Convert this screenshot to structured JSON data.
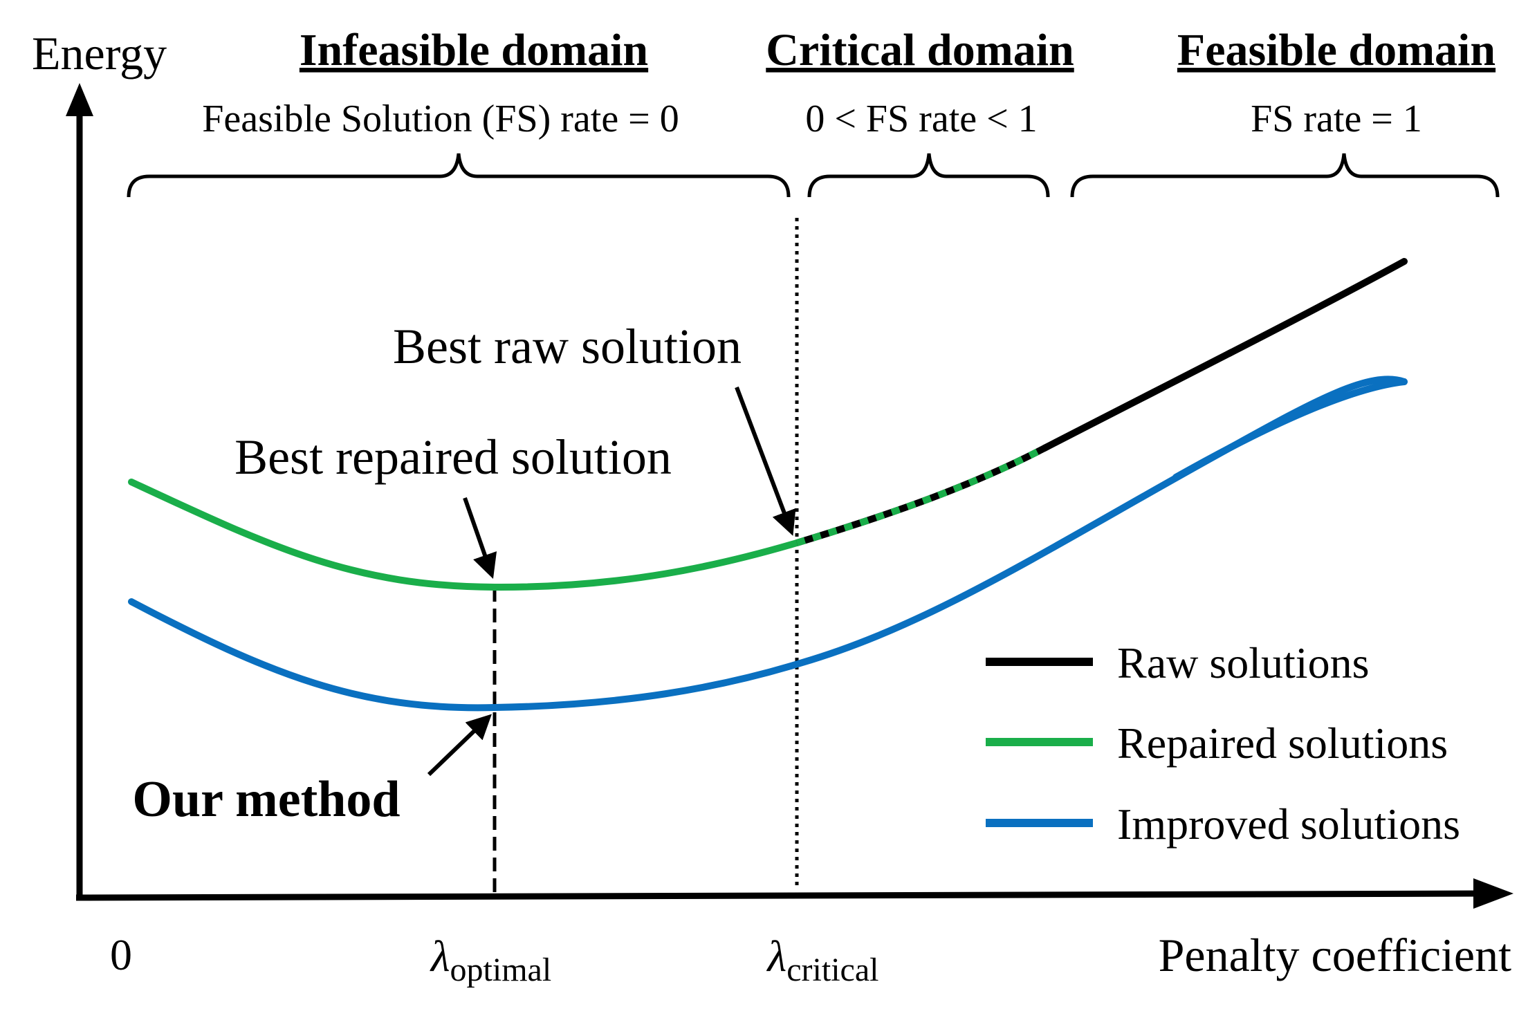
{
  "axes": {
    "y_label": "Energy",
    "x_label": "Penalty coefficient"
  },
  "domains": [
    {
      "title": "Infeasible domain",
      "rate": "Feasible Solution (FS) rate = 0"
    },
    {
      "title": "Critical domain",
      "rate": "0 < FS rate < 1"
    },
    {
      "title": "Feasible domain",
      "rate": "FS rate = 1"
    }
  ],
  "x_ticks": {
    "zero": "0",
    "optimal_symbol": "λ",
    "optimal_subscript": "optimal",
    "critical_symbol": "λ",
    "critical_subscript": "critical"
  },
  "annotations": {
    "best_raw": "Best raw solution",
    "best_repaired": "Best repaired solution",
    "our_method": "Our method"
  },
  "legend": [
    {
      "label": "Raw solutions",
      "color": "#000000"
    },
    {
      "label": "Repaired solutions",
      "color": "#1aae4a"
    },
    {
      "label": "Improved solutions",
      "color": "#0a70c0"
    }
  ],
  "colors": {
    "raw": "#000000",
    "repaired": "#1aae4a",
    "improved": "#0a70c0"
  }
}
